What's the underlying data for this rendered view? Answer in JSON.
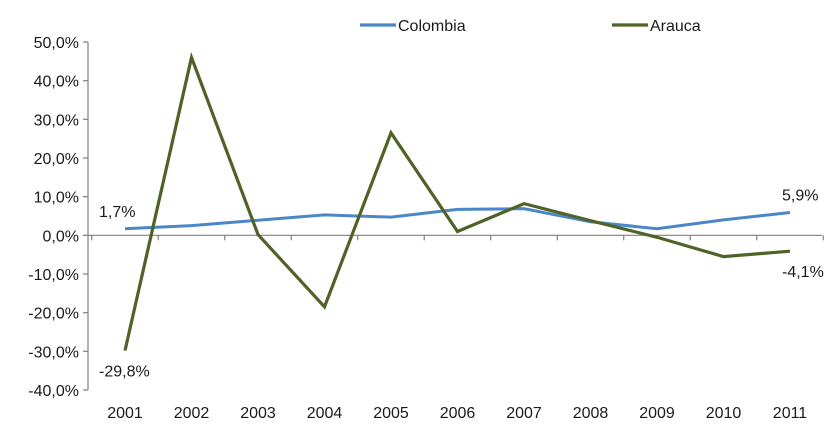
{
  "chart_data": {
    "type": "line",
    "title": "",
    "xlabel": "",
    "ylabel": "",
    "categories": [
      "2001",
      "2002",
      "2003",
      "2004",
      "2005",
      "2006",
      "2007",
      "2008",
      "2009",
      "2010",
      "2011"
    ],
    "ylim": [
      -40,
      50
    ],
    "yticks": [
      -40,
      -30,
      -20,
      -10,
      0,
      10,
      20,
      30,
      40,
      50
    ],
    "ytick_labels": [
      "-40,0%",
      "-30,0%",
      "-20,0%",
      "-10,0%",
      "0,0%",
      "10,0%",
      "20,0%",
      "30,0%",
      "40,0%",
      "50,0%"
    ],
    "grid": false,
    "legend_position": "top",
    "series": [
      {
        "name": "Colombia",
        "color": "#4a86c8",
        "values": [
          1.7,
          2.5,
          3.9,
          5.3,
          4.7,
          6.7,
          6.9,
          3.5,
          1.7,
          4.0,
          5.9
        ]
      },
      {
        "name": "Arauca",
        "color": "#4f6228",
        "values": [
          -29.8,
          46.0,
          0.2,
          -18.5,
          26.5,
          1.0,
          8.2,
          3.8,
          -0.5,
          -5.5,
          -4.1
        ]
      }
    ],
    "annotations": [
      {
        "series": 0,
        "index": 0,
        "text": "1,7%",
        "placement": "above"
      },
      {
        "series": 0,
        "index": 10,
        "text": "5,9%",
        "placement": "above"
      },
      {
        "series": 1,
        "index": 0,
        "text": "-29,8%",
        "placement": "below"
      },
      {
        "series": 1,
        "index": 10,
        "text": "-4,1%",
        "placement": "below"
      }
    ]
  }
}
